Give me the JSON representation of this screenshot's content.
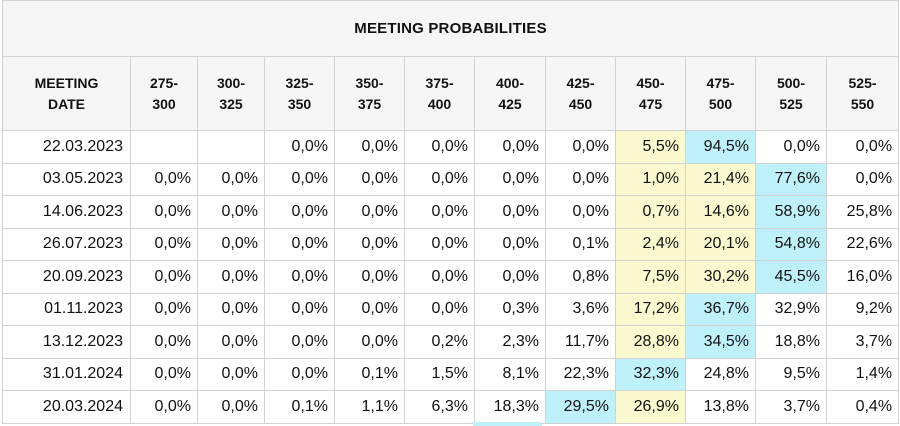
{
  "title": "MEETING PROBABILITIES",
  "headers": [
    {
      "l1": "MEETING",
      "l2": "DATE"
    },
    {
      "l1": "275-",
      "l2": "300"
    },
    {
      "l1": "300-",
      "l2": "325"
    },
    {
      "l1": "325-",
      "l2": "350"
    },
    {
      "l1": "350-",
      "l2": "375"
    },
    {
      "l1": "375-",
      "l2": "400"
    },
    {
      "l1": "400-",
      "l2": "425"
    },
    {
      "l1": "425-",
      "l2": "450"
    },
    {
      "l1": "450-",
      "l2": "475"
    },
    {
      "l1": "475-",
      "l2": "500"
    },
    {
      "l1": "500-",
      "l2": "525"
    },
    {
      "l1": "525-",
      "l2": "550"
    }
  ],
  "colors": {
    "highlight_yellow": "#fbf9cf",
    "highlight_blue": "#bff1fb"
  },
  "rows": [
    {
      "date": "22.03.2023",
      "cells": [
        {
          "v": ""
        },
        {
          "v": ""
        },
        {
          "v": "0,0%"
        },
        {
          "v": "0,0%"
        },
        {
          "v": "0,0%"
        },
        {
          "v": "0,0%"
        },
        {
          "v": "0,0%"
        },
        {
          "v": "5,5%",
          "hl": "yel"
        },
        {
          "v": "94,5%",
          "hl": "blu"
        },
        {
          "v": "0,0%"
        },
        {
          "v": "0,0%"
        }
      ]
    },
    {
      "date": "03.05.2023",
      "cells": [
        {
          "v": "0,0%"
        },
        {
          "v": "0,0%"
        },
        {
          "v": "0,0%"
        },
        {
          "v": "0,0%"
        },
        {
          "v": "0,0%"
        },
        {
          "v": "0,0%"
        },
        {
          "v": "0,0%"
        },
        {
          "v": "1,0%",
          "hl": "yel"
        },
        {
          "v": "21,4%",
          "hl": "yel"
        },
        {
          "v": "77,6%",
          "hl": "blu"
        },
        {
          "v": "0,0%"
        }
      ]
    },
    {
      "date": "14.06.2023",
      "cells": [
        {
          "v": "0,0%"
        },
        {
          "v": "0,0%"
        },
        {
          "v": "0,0%"
        },
        {
          "v": "0,0%"
        },
        {
          "v": "0,0%"
        },
        {
          "v": "0,0%"
        },
        {
          "v": "0,0%"
        },
        {
          "v": "0,7%",
          "hl": "yel"
        },
        {
          "v": "14,6%",
          "hl": "yel"
        },
        {
          "v": "58,9%",
          "hl": "blu"
        },
        {
          "v": "25,8%"
        }
      ]
    },
    {
      "date": "26.07.2023",
      "cells": [
        {
          "v": "0,0%"
        },
        {
          "v": "0,0%"
        },
        {
          "v": "0,0%"
        },
        {
          "v": "0,0%"
        },
        {
          "v": "0,0%"
        },
        {
          "v": "0,0%"
        },
        {
          "v": "0,1%"
        },
        {
          "v": "2,4%",
          "hl": "yel"
        },
        {
          "v": "20,1%",
          "hl": "yel"
        },
        {
          "v": "54,8%",
          "hl": "blu"
        },
        {
          "v": "22,6%"
        }
      ]
    },
    {
      "date": "20.09.2023",
      "cells": [
        {
          "v": "0,0%"
        },
        {
          "v": "0,0%"
        },
        {
          "v": "0,0%"
        },
        {
          "v": "0,0%"
        },
        {
          "v": "0,0%"
        },
        {
          "v": "0,0%"
        },
        {
          "v": "0,8%"
        },
        {
          "v": "7,5%",
          "hl": "yel"
        },
        {
          "v": "30,2%",
          "hl": "yel"
        },
        {
          "v": "45,5%",
          "hl": "blu"
        },
        {
          "v": "16,0%"
        }
      ]
    },
    {
      "date": "01.11.2023",
      "cells": [
        {
          "v": "0,0%"
        },
        {
          "v": "0,0%"
        },
        {
          "v": "0,0%"
        },
        {
          "v": "0,0%"
        },
        {
          "v": "0,0%"
        },
        {
          "v": "0,3%"
        },
        {
          "v": "3,6%"
        },
        {
          "v": "17,2%",
          "hl": "yel"
        },
        {
          "v": "36,7%",
          "hl": "blu"
        },
        {
          "v": "32,9%"
        },
        {
          "v": "9,2%"
        }
      ]
    },
    {
      "date": "13.12.2023",
      "cells": [
        {
          "v": "0,0%"
        },
        {
          "v": "0,0%"
        },
        {
          "v": "0,0%"
        },
        {
          "v": "0,0%"
        },
        {
          "v": "0,2%"
        },
        {
          "v": "2,3%"
        },
        {
          "v": "11,7%"
        },
        {
          "v": "28,8%",
          "hl": "yel"
        },
        {
          "v": "34,5%",
          "hl": "blu"
        },
        {
          "v": "18,8%"
        },
        {
          "v": "3,7%"
        }
      ]
    },
    {
      "date": "31.01.2024",
      "cells": [
        {
          "v": "0,0%"
        },
        {
          "v": "0,0%"
        },
        {
          "v": "0,0%"
        },
        {
          "v": "0,1%"
        },
        {
          "v": "1,5%"
        },
        {
          "v": "8,1%"
        },
        {
          "v": "22,3%"
        },
        {
          "v": "32,3%",
          "hl": "blu"
        },
        {
          "v": "24,8%"
        },
        {
          "v": "9,5%"
        },
        {
          "v": "1,4%"
        }
      ]
    },
    {
      "date": "20.03.2024",
      "cells": [
        {
          "v": "0,0%"
        },
        {
          "v": "0,0%"
        },
        {
          "v": "0,1%"
        },
        {
          "v": "1,1%"
        },
        {
          "v": "6,3%"
        },
        {
          "v": "18,3%"
        },
        {
          "v": "29,5%",
          "hl": "blu"
        },
        {
          "v": "26,9%",
          "hl": "yel"
        },
        {
          "v": "13,8%"
        },
        {
          "v": "3,7%"
        },
        {
          "v": "0,4%"
        }
      ]
    }
  ]
}
